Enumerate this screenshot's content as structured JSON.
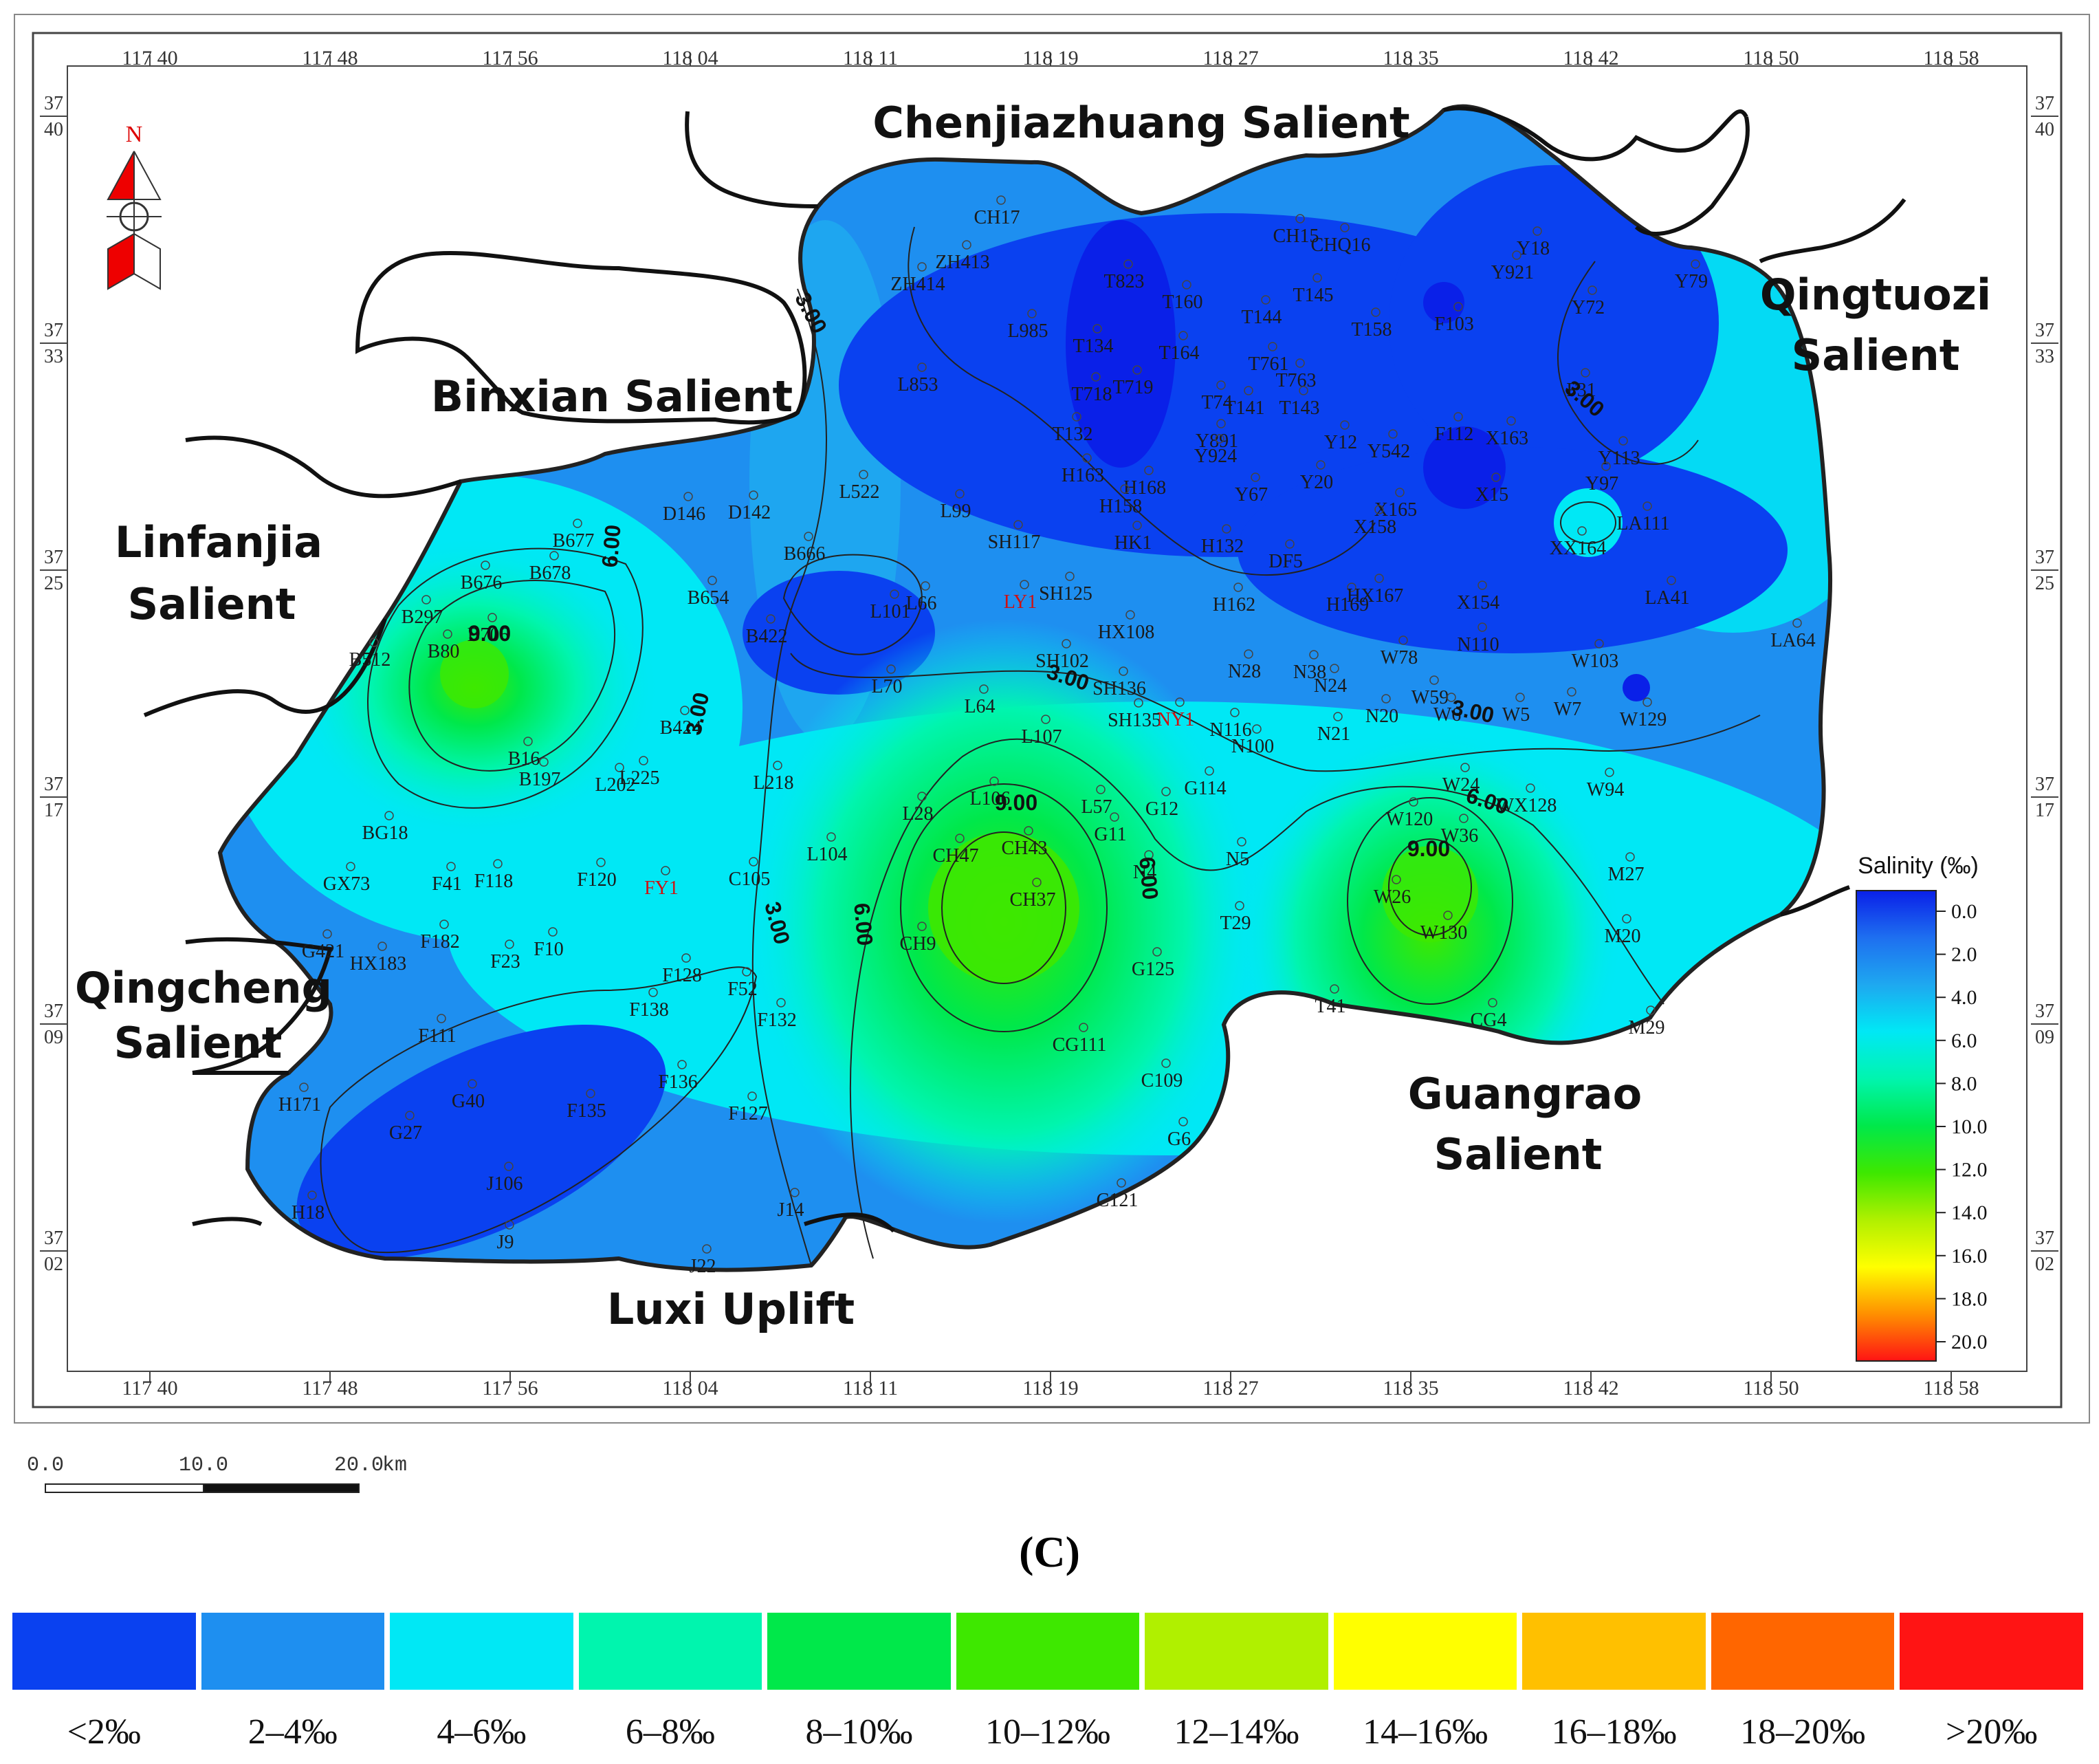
{
  "map": {
    "regions": [
      {
        "name": "Chenjiazhuang  Salient",
        "lines": [
          "Chenjiazhuang  Salient"
        ]
      },
      {
        "name": "Binxian Salient",
        "lines": [
          "Binxian Salient"
        ]
      },
      {
        "name": "Linfanjia Salient",
        "lines": [
          "Linfanjia",
          "Salient"
        ]
      },
      {
        "name": "Qingcheng Salient",
        "lines": [
          "Qingcheng",
          "Salient"
        ]
      },
      {
        "name": "Qingtuozi Salient",
        "lines": [
          "Qingtuozi",
          "Salient"
        ]
      },
      {
        "name": "Guangrao Salient",
        "lines": [
          "Guangrao",
          "Salient"
        ]
      },
      {
        "name": "Luxi  Uplift",
        "lines": [
          "Luxi  Uplift"
        ]
      }
    ],
    "longitude_ticks": [
      "117 40",
      "117 48",
      "117 56",
      "118 04",
      "118 11",
      "118 19",
      "118 27",
      "118 35",
      "118 42",
      "118 50",
      "118 58"
    ],
    "latitude_ticks": [
      [
        "37",
        "40"
      ],
      [
        "37",
        "33"
      ],
      [
        "37",
        "25"
      ],
      [
        "37",
        "17"
      ],
      [
        "37",
        "09"
      ],
      [
        "37",
        "02"
      ]
    ],
    "north_label": "N",
    "contour_labels": [
      "3.00",
      "3.00",
      "3.00",
      "3.00",
      "3.00",
      "3.00",
      "6.00",
      "6.00",
      "6.00",
      "6.00",
      "9.00",
      "9.00",
      "9.00"
    ],
    "wells": [
      "CH17",
      "ZH413",
      "ZH414",
      "T823",
      "T160",
      "CH15",
      "CHQ16",
      "Y18",
      "Y921",
      "Y79",
      "T145",
      "T144",
      "L985",
      "T134",
      "T164",
      "T158",
      "F103",
      "Y72",
      "T761",
      "T763",
      "T718",
      "T719",
      "T141",
      "T143",
      "T74",
      "L853",
      "T132",
      "Y891",
      "Y924",
      "Y12",
      "Y542",
      "F112",
      "X163",
      "F31",
      "Y113",
      "H163",
      "H168",
      "H158",
      "Y67",
      "Y20",
      "X165",
      "X158",
      "X15",
      "Y97",
      "LA111",
      "XX164",
      "L522",
      "D146",
      "D142",
      "L99",
      "SH117",
      "HK1",
      "H132",
      "DF5",
      "B677",
      "B666",
      "B676",
      "B678",
      "B654",
      "L101",
      "L66",
      "SH125",
      "H162",
      "H169",
      "HX167",
      "X154",
      "LA41",
      "B297",
      "B706",
      "B80",
      "B512",
      "B422",
      "HX108",
      "SH102",
      "N28",
      "N38",
      "N24",
      "W78",
      "N110",
      "W103",
      "LA64",
      "L70",
      "SH136",
      "SH135",
      "N116",
      "N100",
      "N21",
      "N20",
      "W59",
      "W6",
      "W5",
      "W7",
      "W129",
      "B424",
      "L64",
      "L107",
      "W24",
      "WX128",
      "W94",
      "B16",
      "B197",
      "L202",
      "L225",
      "L218",
      "G114",
      "L106",
      "L57",
      "G12",
      "W120",
      "W36",
      "BG18",
      "L28",
      "CH47",
      "CH43",
      "G11",
      "N5",
      "N4",
      "GX73",
      "F41",
      "F118",
      "F120",
      "C105",
      "L104",
      "CH37",
      "W26",
      "M27",
      "G421",
      "HX183",
      "F182",
      "F10",
      "F23",
      "CH9",
      "T29",
      "W130",
      "M20",
      "F128",
      "F52",
      "G125",
      "F138",
      "F132",
      "T41",
      "CG4",
      "M29",
      "F111",
      "CG111",
      "H171",
      "G40",
      "F135",
      "F136",
      "F127",
      "C109",
      "G27",
      "G6",
      "J106",
      "H18",
      "J9",
      "J14",
      "C121",
      "J22"
    ],
    "red_wells": [
      "LY1",
      "NY1",
      "FY1"
    ],
    "salinity_bar": {
      "title": "Salinity  (‰)",
      "ticks": [
        "0.0",
        "2.0",
        "4.0",
        "6.0",
        "8.0",
        "10.0",
        "12.0",
        "14.0",
        "16.0",
        "18.0",
        "20.0"
      ]
    },
    "scale": {
      "ticks": [
        "0.0",
        "10.0",
        "20.0"
      ],
      "unit": "km"
    }
  },
  "caption": "(C)",
  "legend": [
    {
      "label": "<2‰",
      "color": "#0a41f0"
    },
    {
      "label": "2–4‰",
      "color": "#1e8ff0"
    },
    {
      "label": "4–6‰",
      "color": "#00e8f5"
    },
    {
      "label": "6–8‰",
      "color": "#00f5ae"
    },
    {
      "label": "8–10‰",
      "color": "#00e84a"
    },
    {
      "label": "10–12‰",
      "color": "#3ee800"
    },
    {
      "label": "12–14‰",
      "color": "#b0f000"
    },
    {
      "label": "14–16‰",
      "color": "#ffff00"
    },
    {
      "label": "16–18‰",
      "color": "#ffc000"
    },
    {
      "label": "18–20‰",
      "color": "#ff6600"
    },
    {
      "label": ">20‰",
      "color": "#ff1414"
    }
  ]
}
